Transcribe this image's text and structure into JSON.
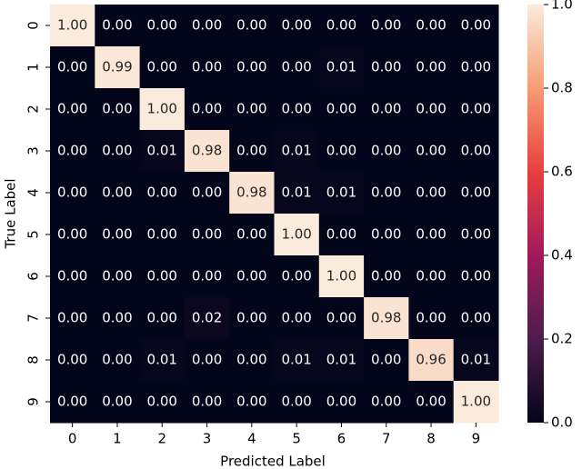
{
  "chart_data": {
    "type": "heatmap",
    "x_label": "Predicted Label",
    "y_label": "True Label",
    "x_categories": [
      "0",
      "1",
      "2",
      "3",
      "4",
      "5",
      "6",
      "7",
      "8",
      "9"
    ],
    "y_categories": [
      "0",
      "1",
      "2",
      "3",
      "4",
      "5",
      "6",
      "7",
      "8",
      "9"
    ],
    "colormap": "rocket",
    "values": [
      [
        1,
        0,
        0,
        0,
        0,
        0,
        0,
        0,
        0,
        0
      ],
      [
        0,
        0.99,
        0,
        0,
        0,
        0,
        0.01,
        0,
        0,
        0
      ],
      [
        0,
        0,
        1,
        0,
        0,
        0,
        0,
        0,
        0,
        0
      ],
      [
        0,
        0,
        0.01,
        0.98,
        0,
        0.01,
        0,
        0,
        0,
        0
      ],
      [
        0,
        0,
        0,
        0,
        0.98,
        0.01,
        0.01,
        0,
        0,
        0
      ],
      [
        0,
        0,
        0,
        0,
        0,
        1,
        0,
        0,
        0,
        0
      ],
      [
        0,
        0,
        0,
        0,
        0,
        0,
        1,
        0,
        0,
        0
      ],
      [
        0,
        0,
        0,
        0.02,
        0,
        0,
        0,
        0.98,
        0,
        0
      ],
      [
        0,
        0,
        0.01,
        0,
        0,
        0.01,
        0.01,
        0,
        0.96,
        0.01
      ],
      [
        0,
        0,
        0,
        0,
        0,
        0,
        0,
        0,
        0,
        1
      ]
    ],
    "value_labels": [
      [
        "1.00",
        "0.00",
        "0.00",
        "0.00",
        "0.00",
        "0.00",
        "0.00",
        "0.00",
        "0.00",
        "0.00"
      ],
      [
        "0.00",
        "0.99",
        "0.00",
        "0.00",
        "0.00",
        "0.00",
        "0.01",
        "0.00",
        "0.00",
        "0.00"
      ],
      [
        "0.00",
        "0.00",
        "1.00",
        "0.00",
        "0.00",
        "0.00",
        "0.00",
        "0.00",
        "0.00",
        "0.00"
      ],
      [
        "0.00",
        "0.00",
        "0.01",
        "0.98",
        "0.00",
        "0.01",
        "0.00",
        "0.00",
        "0.00",
        "0.00"
      ],
      [
        "0.00",
        "0.00",
        "0.00",
        "0.00",
        "0.98",
        "0.01",
        "0.01",
        "0.00",
        "0.00",
        "0.00"
      ],
      [
        "0.00",
        "0.00",
        "0.00",
        "0.00",
        "0.00",
        "1.00",
        "0.00",
        "0.00",
        "0.00",
        "0.00"
      ],
      [
        "0.00",
        "0.00",
        "0.00",
        "0.00",
        "0.00",
        "0.00",
        "1.00",
        "0.00",
        "0.00",
        "0.00"
      ],
      [
        "0.00",
        "0.00",
        "0.00",
        "0.02",
        "0.00",
        "0.00",
        "0.00",
        "0.98",
        "0.00",
        "0.00"
      ],
      [
        "0.00",
        "0.00",
        "0.01",
        "0.00",
        "0.00",
        "0.01",
        "0.01",
        "0.00",
        "0.96",
        "0.01"
      ],
      [
        "0.00",
        "0.00",
        "0.00",
        "0.00",
        "0.00",
        "0.00",
        "0.00",
        "0.00",
        "0.00",
        "1.00"
      ]
    ],
    "colorbar_lim": [
      0,
      1
    ],
    "colorbar_ticks": [
      {
        "value": 0,
        "label": "0.0"
      },
      0.2,
      0.4,
      0.6,
      0.8,
      {
        "value": 1,
        "label": "1.0"
      }
    ]
  }
}
